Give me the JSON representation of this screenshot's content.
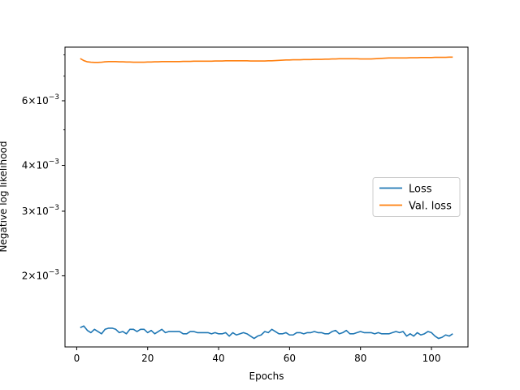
{
  "chart_data": {
    "type": "line",
    "xlabel": "Epochs",
    "ylabel": "Negative log likelihood",
    "xlim": [
      -3.3,
      110.3
    ],
    "ylim": [
      0.00128,
      0.0084
    ],
    "yscale": "log",
    "x_ticks": [
      0,
      20,
      40,
      60,
      80,
      100
    ],
    "y_ticks": [
      {
        "value": 0.002,
        "mantissa": "2",
        "base": "10",
        "exponent": "−3"
      },
      {
        "value": 0.003,
        "mantissa": "3",
        "base": "10",
        "exponent": "−3"
      },
      {
        "value": 0.004,
        "mantissa": "4",
        "base": "10",
        "exponent": "−3"
      },
      {
        "value": 0.006,
        "mantissa": "6",
        "base": "10",
        "exponent": "−3"
      }
    ],
    "y_minor_ticks": [
      0.005,
      0.007,
      0.008
    ],
    "legend": {
      "position": "center-right"
    },
    "series": [
      {
        "name": "Loss",
        "color": "#1f77b4",
        "x_start": 1,
        "x_step": 1,
        "values": [
          0.001445,
          0.00146,
          0.00142,
          0.0014,
          0.00143,
          0.00141,
          0.00139,
          0.00143,
          0.00144,
          0.00144,
          0.00143,
          0.0014,
          0.00141,
          0.00139,
          0.00143,
          0.00143,
          0.00141,
          0.00143,
          0.00143,
          0.0014,
          0.00142,
          0.00139,
          0.00141,
          0.00143,
          0.0014,
          0.00141,
          0.00141,
          0.00141,
          0.00141,
          0.00139,
          0.00139,
          0.00141,
          0.00141,
          0.0014,
          0.0014,
          0.0014,
          0.0014,
          0.00139,
          0.0014,
          0.00139,
          0.00139,
          0.0014,
          0.00137,
          0.0014,
          0.00138,
          0.00139,
          0.0014,
          0.00139,
          0.00137,
          0.00135,
          0.00137,
          0.00138,
          0.00141,
          0.0014,
          0.00143,
          0.00141,
          0.00139,
          0.00139,
          0.0014,
          0.00138,
          0.00138,
          0.0014,
          0.0014,
          0.00139,
          0.0014,
          0.0014,
          0.00141,
          0.0014,
          0.0014,
          0.00139,
          0.00139,
          0.00141,
          0.00142,
          0.00139,
          0.0014,
          0.00142,
          0.00139,
          0.00139,
          0.0014,
          0.00141,
          0.0014,
          0.0014,
          0.0014,
          0.00139,
          0.0014,
          0.00139,
          0.00139,
          0.00139,
          0.0014,
          0.00141,
          0.0014,
          0.00141,
          0.00137,
          0.00139,
          0.00137,
          0.0014,
          0.00138,
          0.00139,
          0.00141,
          0.0014,
          0.00137,
          0.00135,
          0.00136,
          0.00138,
          0.00137,
          0.00139
        ]
      },
      {
        "name": "Val. loss",
        "color": "#ff7f0e",
        "x_start": 1,
        "x_step": 1,
        "values": [
          0.00782,
          0.00772,
          0.00766,
          0.00764,
          0.00763,
          0.00763,
          0.00764,
          0.00766,
          0.00767,
          0.00767,
          0.00767,
          0.00766,
          0.00766,
          0.00765,
          0.00765,
          0.00764,
          0.00764,
          0.00764,
          0.00764,
          0.00765,
          0.00765,
          0.00766,
          0.00766,
          0.00767,
          0.00767,
          0.00767,
          0.00767,
          0.00767,
          0.00767,
          0.00768,
          0.00768,
          0.00768,
          0.00769,
          0.00769,
          0.00769,
          0.00769,
          0.00769,
          0.00769,
          0.0077,
          0.0077,
          0.0077,
          0.00771,
          0.00771,
          0.00771,
          0.00771,
          0.00771,
          0.00771,
          0.00771,
          0.0077,
          0.0077,
          0.0077,
          0.0077,
          0.0077,
          0.00771,
          0.00771,
          0.00772,
          0.00773,
          0.00774,
          0.00775,
          0.00775,
          0.00776,
          0.00776,
          0.00776,
          0.00777,
          0.00777,
          0.00777,
          0.00778,
          0.00778,
          0.00778,
          0.00779,
          0.00779,
          0.0078,
          0.0078,
          0.00781,
          0.00781,
          0.00781,
          0.00781,
          0.00781,
          0.00781,
          0.0078,
          0.0078,
          0.0078,
          0.0078,
          0.00781,
          0.00782,
          0.00783,
          0.00784,
          0.00785,
          0.00785,
          0.00785,
          0.00785,
          0.00785,
          0.00785,
          0.00786,
          0.00786,
          0.00786,
          0.00787,
          0.00787,
          0.00787,
          0.00787,
          0.00788,
          0.00788,
          0.00788,
          0.00788,
          0.00789,
          0.00789
        ]
      }
    ]
  }
}
